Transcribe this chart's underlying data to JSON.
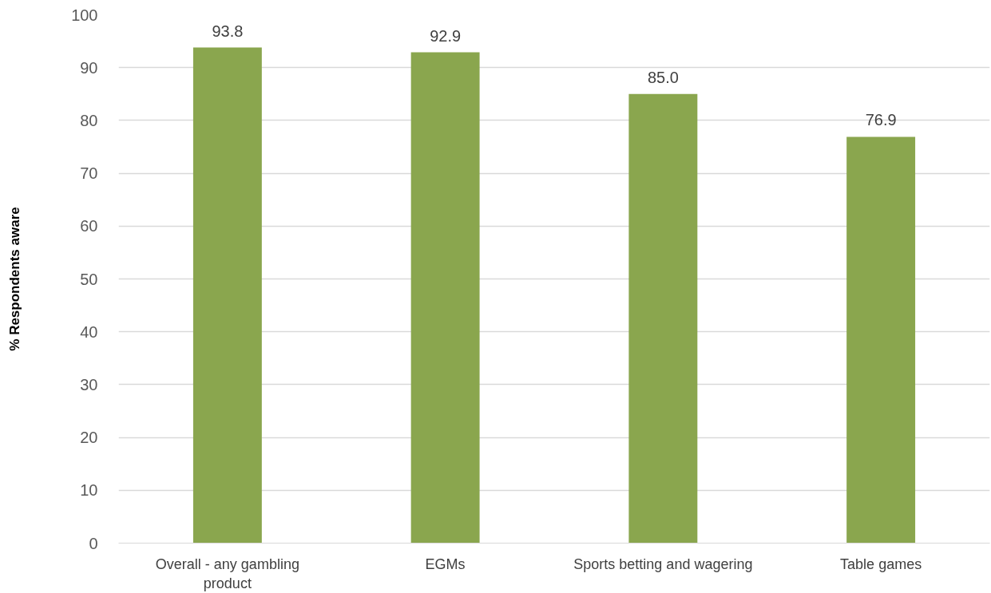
{
  "chart_data": {
    "type": "bar",
    "ylabel": "% Respondents aware",
    "categories": [
      "Overall - any gambling product",
      "EGMs",
      "Sports betting and wagering",
      "Table games"
    ],
    "values": [
      93.8,
      92.9,
      85.0,
      76.9
    ],
    "value_labels": [
      "93.8",
      "92.9",
      "85.0",
      "76.9"
    ],
    "color": "#8aa64e",
    "ylim": [
      0,
      100
    ],
    "yticks": [
      0,
      10,
      20,
      30,
      40,
      50,
      60,
      70,
      80,
      90,
      100
    ],
    "grid": "y"
  }
}
